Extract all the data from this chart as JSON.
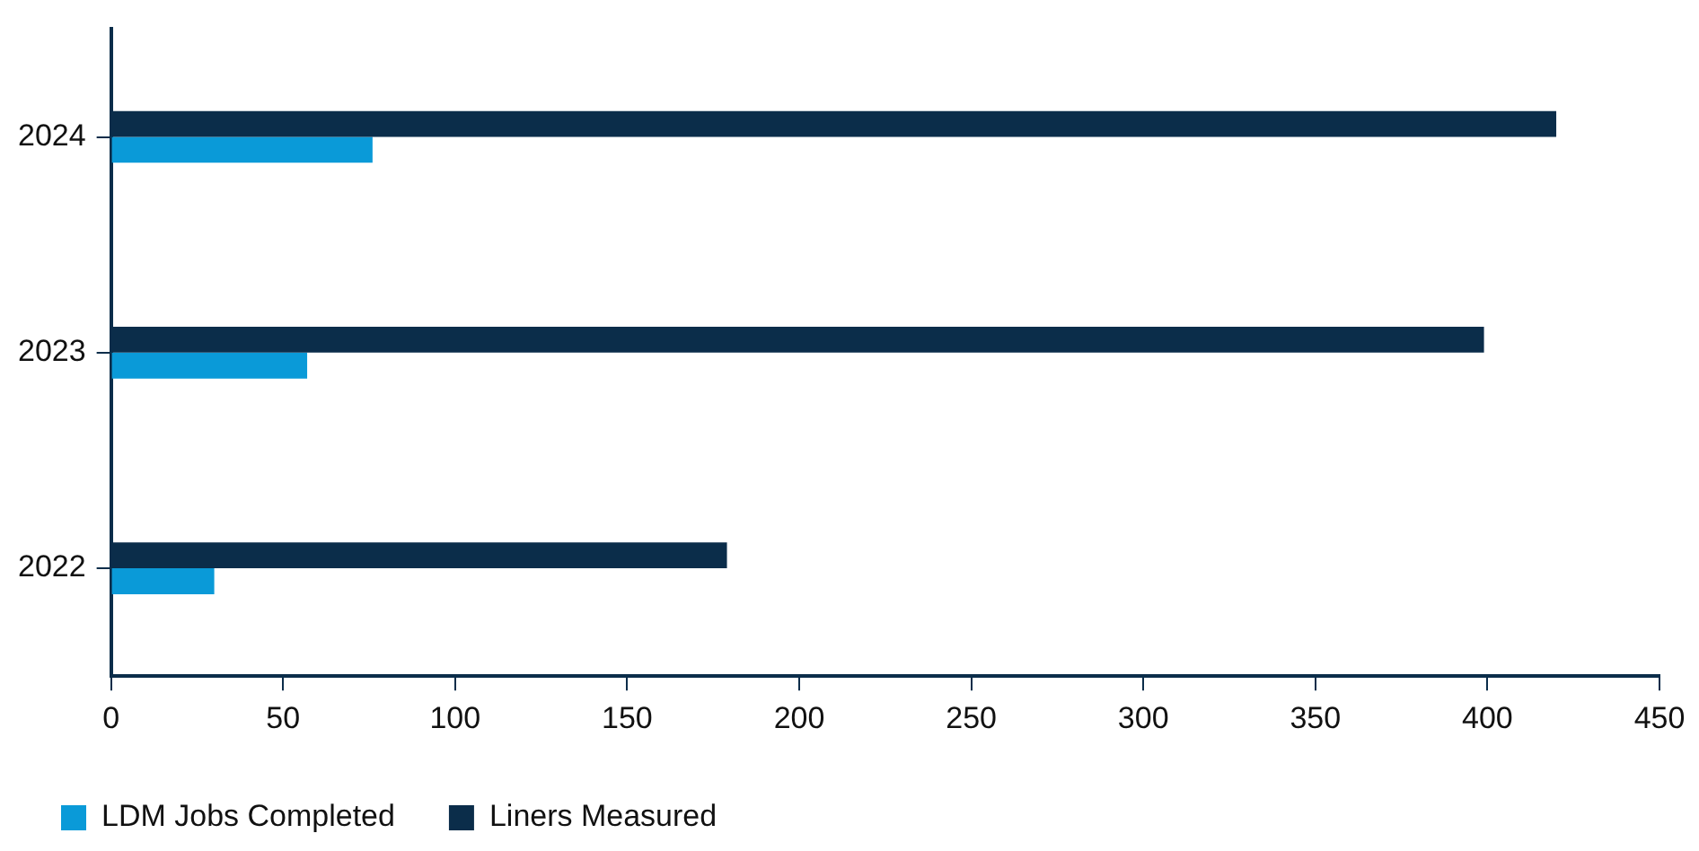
{
  "chart_data": {
    "type": "bar",
    "orientation": "horizontal",
    "categories": [
      "2024",
      "2023",
      "2022"
    ],
    "series": [
      {
        "name": "LDM Jobs Completed",
        "color": "#0a9ad8",
        "values": [
          76,
          57,
          30
        ]
      },
      {
        "name": "Liners Measured",
        "color": "#0b2d4a",
        "values": [
          420,
          399,
          179
        ]
      }
    ],
    "xlim": [
      0,
      450
    ],
    "xticks": [
      0,
      50,
      100,
      150,
      200,
      250,
      300,
      350,
      400,
      450
    ],
    "grid": false,
    "legend": "bottom left"
  }
}
